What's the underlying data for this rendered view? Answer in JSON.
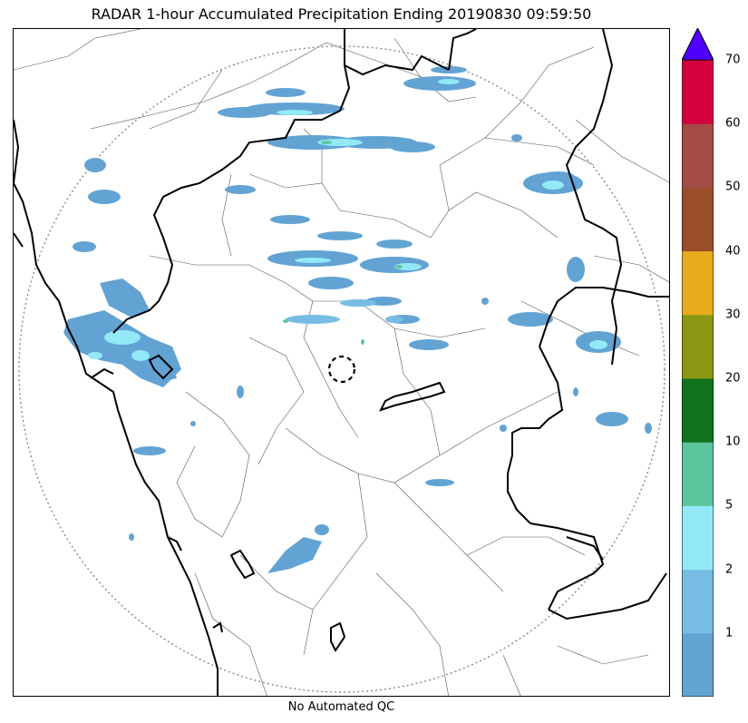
{
  "title": "RADAR 1-hour Accumulated Precipitation Ending 20190830 09:59:50",
  "footer": "No Automated QC",
  "colorbar": {
    "colors": [
      "#62a3d4",
      "#77bde3",
      "#93e9f8",
      "#5dc59d",
      "#10731b",
      "#8b9715",
      "#e7ab1c",
      "#9a4e2a",
      "#a44c46",
      "#d4003f"
    ],
    "extend_color": "#5000ff",
    "ticks": [
      {
        "label": "1",
        "level": 1
      },
      {
        "label": "2",
        "level": 2
      },
      {
        "label": "5",
        "level": 3
      },
      {
        "label": "10",
        "level": 4
      },
      {
        "label": "20",
        "level": 5
      },
      {
        "label": "30",
        "level": 6
      },
      {
        "label": "40",
        "level": 7
      },
      {
        "label": "50",
        "level": 8
      },
      {
        "label": "60",
        "level": 9
      },
      {
        "label": "70",
        "level": 10
      }
    ]
  }
}
